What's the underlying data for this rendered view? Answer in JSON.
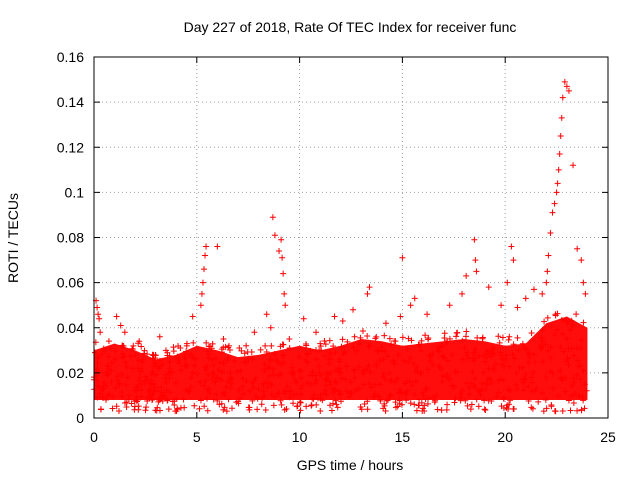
{
  "chart_data": {
    "type": "scatter",
    "title": "Day 227 of 2018, Rate Of TEC Index for receiver func",
    "xlabel": "GPS time / hours",
    "ylabel": "ROTI / TECUs",
    "xlim": [
      0,
      25
    ],
    "ylim": [
      0,
      0.16
    ],
    "xticks": [
      0,
      5,
      10,
      15,
      20,
      25
    ],
    "yticks": [
      0,
      0.02,
      0.04,
      0.06,
      0.08,
      0.1,
      0.12,
      0.14,
      0.16
    ],
    "xtick_labels": [
      "0",
      "5",
      "10",
      "15",
      "20",
      "25"
    ],
    "ytick_labels": [
      "0",
      "0.02",
      "0.04",
      "0.06",
      "0.08",
      "0.1",
      "0.12",
      "0.14",
      "0.16"
    ],
    "grid": true,
    "marker": "+",
    "series": [
      {
        "name": "ROTI",
        "color": "#ff0000",
        "x": [
          0.1,
          0.15,
          0.2,
          0.25,
          0.3,
          0.6,
          1.1,
          1.3,
          1.5,
          2.2,
          2.9,
          3.2,
          3.5,
          4.2,
          4.8,
          5.2,
          5.25,
          5.3,
          5.35,
          5.4,
          5.45,
          6.0,
          6.3,
          7.4,
          7.8,
          8.4,
          8.6,
          8.7,
          8.8,
          9.0,
          9.1,
          9.15,
          9.2,
          9.25,
          9.3,
          9.5,
          10.2,
          10.8,
          11.7,
          12.1,
          12.6,
          13.3,
          13.4,
          14.2,
          14.9,
          15.0,
          15.4,
          15.6,
          16.2,
          17.3,
          17.9,
          18.1,
          18.5,
          18.55,
          18.6,
          19.2,
          19.8,
          20.1,
          20.3,
          20.4,
          20.6,
          21.0,
          21.4,
          21.8,
          22.0,
          22.05,
          22.1,
          22.2,
          22.3,
          22.4,
          22.5,
          22.55,
          22.6,
          22.65,
          22.7,
          22.75,
          22.8,
          22.9,
          23.0,
          23.1,
          23.3,
          23.5,
          23.7,
          23.8,
          23.9
        ],
        "y": [
          0.052,
          0.049,
          0.046,
          0.044,
          0.038,
          0.02,
          0.045,
          0.041,
          0.038,
          0.034,
          0.028,
          0.036,
          0.03,
          0.031,
          0.045,
          0.05,
          0.055,
          0.06,
          0.066,
          0.072,
          0.076,
          0.076,
          0.035,
          0.032,
          0.038,
          0.046,
          0.04,
          0.089,
          0.081,
          0.074,
          0.079,
          0.071,
          0.064,
          0.055,
          0.05,
          0.035,
          0.044,
          0.038,
          0.045,
          0.043,
          0.048,
          0.055,
          0.058,
          0.042,
          0.045,
          0.071,
          0.05,
          0.053,
          0.046,
          0.05,
          0.055,
          0.063,
          0.079,
          0.07,
          0.065,
          0.058,
          0.05,
          0.06,
          0.076,
          0.07,
          0.049,
          0.053,
          0.057,
          0.055,
          0.06,
          0.065,
          0.072,
          0.082,
          0.091,
          0.095,
          0.1,
          0.104,
          0.11,
          0.117,
          0.125,
          0.133,
          0.142,
          0.149,
          0.147,
          0.145,
          0.112,
          0.075,
          0.07,
          0.06,
          0.055
        ]
      }
    ],
    "background_band": {
      "description": "dense cloud of ROTI values between baseline and upper envelope across all hours",
      "baseline": 0.008,
      "envelope_x": [
        0,
        1,
        2,
        3,
        4,
        5,
        6,
        7,
        8,
        9,
        10,
        11,
        12,
        13,
        14,
        15,
        16,
        17,
        18,
        19,
        20,
        21,
        22,
        23,
        24
      ],
      "envelope_y": [
        0.03,
        0.033,
        0.03,
        0.026,
        0.028,
        0.032,
        0.03,
        0.027,
        0.028,
        0.03,
        0.032,
        0.03,
        0.032,
        0.035,
        0.034,
        0.032,
        0.033,
        0.034,
        0.035,
        0.034,
        0.032,
        0.033,
        0.042,
        0.045,
        0.04
      ]
    }
  }
}
